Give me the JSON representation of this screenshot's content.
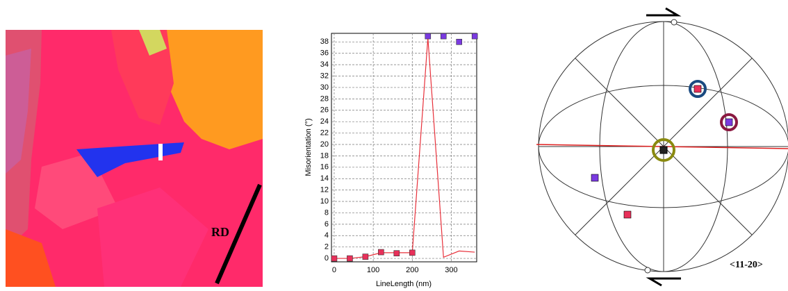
{
  "chart_data": {
    "type": "line",
    "x_label": "LineLength (nm)",
    "y_label": "Misorientation (°)",
    "x": [
      0,
      40,
      80,
      120,
      160,
      200,
      240,
      280,
      320,
      360
    ],
    "series": [
      {
        "style": "line",
        "color": "#e8303a",
        "values": [
          0,
          0,
          0.3,
          1,
          1,
          1,
          38.7,
          0.2,
          1.3,
          1.1
        ]
      },
      {
        "style": "marker",
        "colors": [
          "#e8305a",
          "#e8305a",
          "#e8305a",
          "#e8305a",
          "#e8305a",
          "#e8305a",
          "#7a3ae0",
          "#7a3ae0",
          "#7a3ae0",
          "#7a3ae0"
        ],
        "values": [
          0,
          0,
          0.3,
          1.1,
          0.9,
          1,
          39,
          39,
          38,
          39
        ]
      }
    ],
    "xlim": [
      -7,
      365
    ],
    "ylim": [
      -0.6,
      39.5
    ],
    "xticks": [
      0,
      100,
      200,
      300
    ],
    "yticks": [
      0,
      2,
      4,
      6,
      8,
      10,
      12,
      14,
      16,
      18,
      20,
      22,
      24,
      26,
      28,
      30,
      32,
      34,
      36,
      38
    ],
    "grid": true
  },
  "figure": {
    "map_label": "RD",
    "pole_label": "<11-20>"
  }
}
